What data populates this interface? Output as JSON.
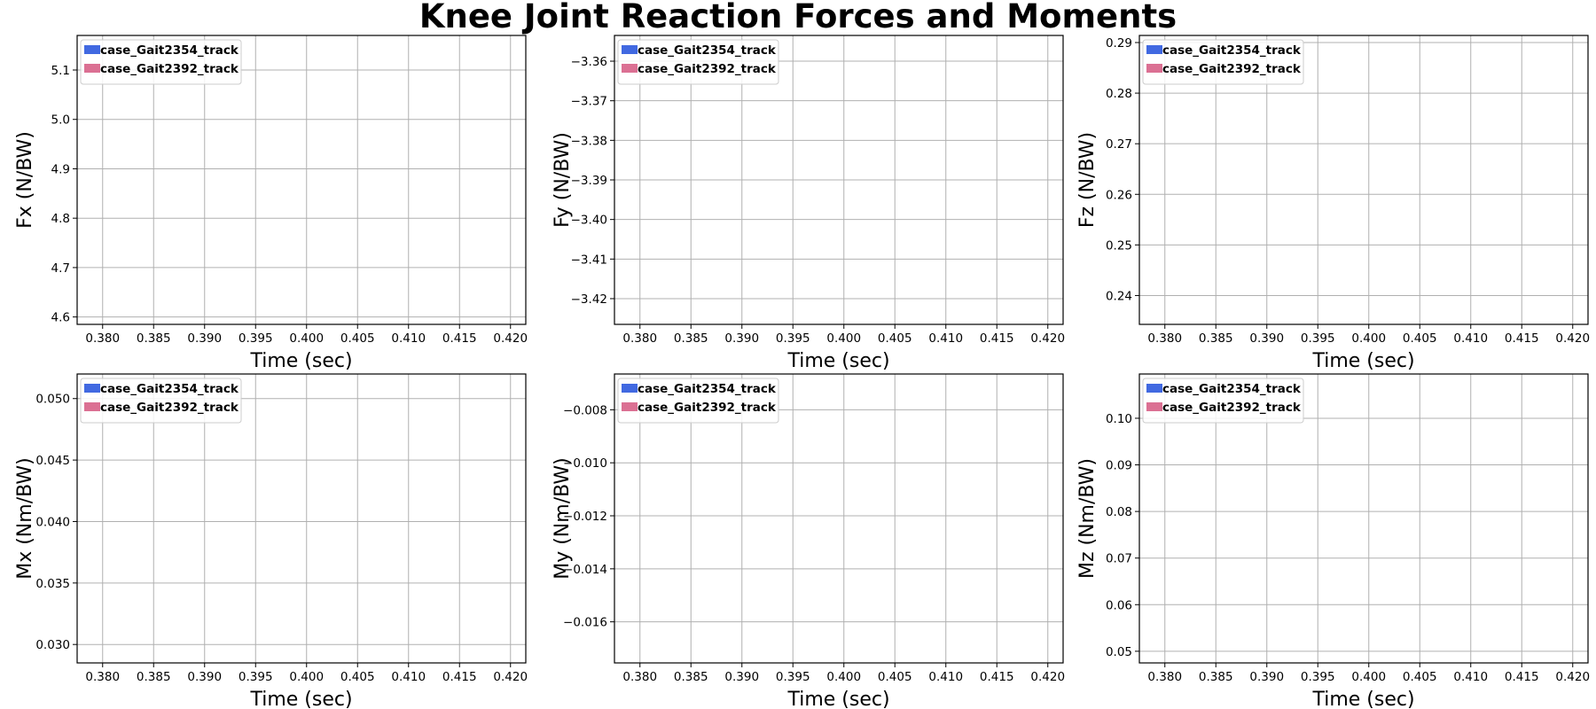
{
  "title": "Knee Joint Reaction Forces and Moments",
  "colors": {
    "series_1": "#4169E1",
    "series_2": "#DB7093",
    "grid": "#b0b0b0"
  },
  "chart_data": [
    {
      "type": "line",
      "xlabel": "Time (sec)",
      "ylabel": "Fx (N/BW)",
      "xlim": [
        0.3775,
        0.4215
      ],
      "ylim": [
        4.585,
        5.17
      ],
      "xticks": [
        0.38,
        0.385,
        0.39,
        0.395,
        0.4,
        0.405,
        0.41,
        0.415,
        0.42
      ],
      "xtick_labels": [
        "0.380",
        "0.385",
        "0.390",
        "0.395",
        "0.400",
        "0.405",
        "0.410",
        "0.415",
        "0.420"
      ],
      "yticks": [
        4.6,
        4.7,
        4.8,
        4.9,
        5.0,
        5.1
      ],
      "ytick_labels": [
        "4.6",
        "4.7",
        "4.8",
        "4.9",
        "5.0",
        "5.1"
      ],
      "grid": true,
      "legend_position": "upper-left",
      "series": [
        {
          "name": "case_Gait2354_track",
          "x": [],
          "values": []
        },
        {
          "name": "case_Gait2392_track",
          "x": [],
          "values": []
        }
      ]
    },
    {
      "type": "line",
      "xlabel": "Time (sec)",
      "ylabel": "Fy (N/BW)",
      "xlim": [
        0.3775,
        0.4215
      ],
      "ylim": [
        -3.4265,
        -3.3535
      ],
      "xticks": [
        0.38,
        0.385,
        0.39,
        0.395,
        0.4,
        0.405,
        0.41,
        0.415,
        0.42
      ],
      "xtick_labels": [
        "0.380",
        "0.385",
        "0.390",
        "0.395",
        "0.400",
        "0.405",
        "0.410",
        "0.415",
        "0.420"
      ],
      "yticks": [
        -3.42,
        -3.41,
        -3.4,
        -3.39,
        -3.38,
        -3.37,
        -3.36
      ],
      "ytick_labels": [
        "−3.42",
        "−3.41",
        "−3.40",
        "−3.39",
        "−3.38",
        "−3.37",
        "−3.36"
      ],
      "grid": true,
      "legend_position": "upper-left",
      "series": [
        {
          "name": "case_Gait2354_track",
          "x": [],
          "values": []
        },
        {
          "name": "case_Gait2392_track",
          "x": [],
          "values": []
        }
      ]
    },
    {
      "type": "line",
      "xlabel": "Time (sec)",
      "ylabel": "Fz (N/BW)",
      "xlim": [
        0.3775,
        0.4215
      ],
      "ylim": [
        0.2343,
        0.2914
      ],
      "xticks": [
        0.38,
        0.385,
        0.39,
        0.395,
        0.4,
        0.405,
        0.41,
        0.415,
        0.42
      ],
      "xtick_labels": [
        "0.380",
        "0.385",
        "0.390",
        "0.395",
        "0.400",
        "0.405",
        "0.410",
        "0.415",
        "0.420"
      ],
      "yticks": [
        0.24,
        0.25,
        0.26,
        0.27,
        0.28,
        0.29
      ],
      "ytick_labels": [
        "0.24",
        "0.25",
        "0.26",
        "0.27",
        "0.28",
        "0.29"
      ],
      "grid": true,
      "legend_position": "upper-left",
      "series": [
        {
          "name": "case_Gait2354_track",
          "x": [],
          "values": []
        },
        {
          "name": "case_Gait2392_track",
          "x": [],
          "values": []
        }
      ]
    },
    {
      "type": "line",
      "xlabel": "Time (sec)",
      "ylabel": "Mx (Nm/BW)",
      "xlim": [
        0.3775,
        0.4215
      ],
      "ylim": [
        0.0285,
        0.052
      ],
      "xticks": [
        0.38,
        0.385,
        0.39,
        0.395,
        0.4,
        0.405,
        0.41,
        0.415,
        0.42
      ],
      "xtick_labels": [
        "0.380",
        "0.385",
        "0.390",
        "0.395",
        "0.400",
        "0.405",
        "0.410",
        "0.415",
        "0.420"
      ],
      "yticks": [
        0.03,
        0.035,
        0.04,
        0.045,
        0.05
      ],
      "ytick_labels": [
        "0.030",
        "0.035",
        "0.040",
        "0.045",
        "0.050"
      ],
      "grid": true,
      "legend_position": "upper-left",
      "series": [
        {
          "name": "case_Gait2354_track",
          "x": [],
          "values": []
        },
        {
          "name": "case_Gait2392_track",
          "x": [],
          "values": []
        }
      ]
    },
    {
      "type": "line",
      "xlabel": "Time (sec)",
      "ylabel": "My (Nm/BW)",
      "xlim": [
        0.3775,
        0.4215
      ],
      "ylim": [
        -0.01755,
        -0.00665
      ],
      "xticks": [
        0.38,
        0.385,
        0.39,
        0.395,
        0.4,
        0.405,
        0.41,
        0.415,
        0.42
      ],
      "xtick_labels": [
        "0.380",
        "0.385",
        "0.390",
        "0.395",
        "0.400",
        "0.405",
        "0.410",
        "0.415",
        "0.420"
      ],
      "yticks": [
        -0.016,
        -0.014,
        -0.012,
        -0.01,
        -0.008
      ],
      "ytick_labels": [
        "−0.016",
        "−0.014",
        "−0.012",
        "−0.010",
        "−0.008"
      ],
      "grid": true,
      "legend_position": "upper-left",
      "series": [
        {
          "name": "case_Gait2354_track",
          "x": [],
          "values": []
        },
        {
          "name": "case_Gait2392_track",
          "x": [],
          "values": []
        }
      ]
    },
    {
      "type": "line",
      "xlabel": "Time (sec)",
      "ylabel": "Mz (Nm/BW)",
      "xlim": [
        0.3775,
        0.4215
      ],
      "ylim": [
        0.0475,
        0.1095
      ],
      "xticks": [
        0.38,
        0.385,
        0.39,
        0.395,
        0.4,
        0.405,
        0.41,
        0.415,
        0.42
      ],
      "xtick_labels": [
        "0.380",
        "0.385",
        "0.390",
        "0.395",
        "0.400",
        "0.405",
        "0.410",
        "0.415",
        "0.420"
      ],
      "yticks": [
        0.05,
        0.06,
        0.07,
        0.08,
        0.09,
        0.1
      ],
      "ytick_labels": [
        "0.05",
        "0.06",
        "0.07",
        "0.08",
        "0.09",
        "0.10"
      ],
      "grid": true,
      "legend_position": "upper-left",
      "series": [
        {
          "name": "case_Gait2354_track",
          "x": [],
          "values": []
        },
        {
          "name": "case_Gait2392_track",
          "x": [],
          "values": []
        }
      ]
    }
  ]
}
